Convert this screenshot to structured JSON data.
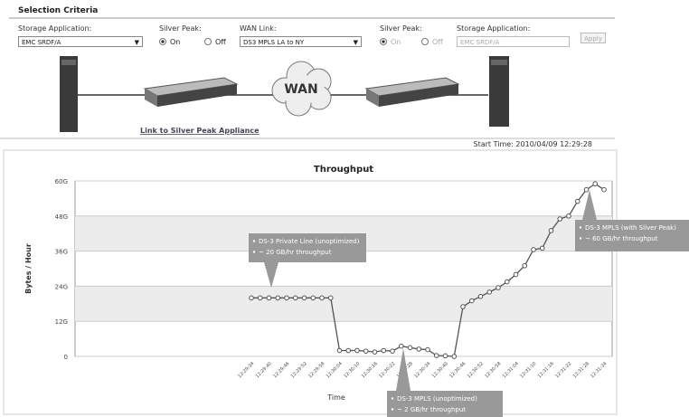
{
  "header": {
    "title": "Selection Criteria"
  },
  "form": {
    "left": {
      "app_label": "Storage Application:",
      "app": "EMC SRDF/A",
      "sp_label": "Silver Peak:",
      "on": "On",
      "off": "Off"
    },
    "wan_label": "WAN Link:",
    "wan": "DS3 MPLS LA to NY",
    "right": {
      "sp_label": "Silver Peak:",
      "on": "On",
      "off": "Off",
      "app_label": "Storage Application:",
      "app": "EMC SRDF/A"
    },
    "apply": "Apply"
  },
  "diagram": {
    "wan": "WAN",
    "link": "Link to Silver Peak Appliance"
  },
  "start_time": "Start Time: 2010/04/09 12:29:28",
  "chart_data": {
    "type": "line",
    "title": "Throughput",
    "y_label": "Bytes / Hour",
    "x_label": "Time",
    "categories": [
      "12:29:34",
      null,
      "12:29:40",
      null,
      "12:29:46",
      null,
      "12:29:52",
      null,
      "12:29:58",
      null,
      "12:30:04",
      null,
      "12:30:10",
      null,
      "12:30:16",
      null,
      "12:30:22",
      null,
      "12:30:28",
      null,
      "12:30:34",
      null,
      "12:30:40",
      null,
      "12:30:46",
      null,
      "12:30:52",
      null,
      "12:30:58",
      null,
      "12:31:04",
      null,
      "12:31:10",
      null,
      "12:31:16",
      null,
      "12:31:22",
      null,
      "12:31:28",
      null,
      "12:31:34"
    ],
    "values": [
      20,
      20,
      20,
      20,
      20,
      20,
      20,
      20,
      20,
      20,
      2,
      2,
      2,
      1.8,
      1.5,
      2,
      1.8,
      3.5,
      3,
      2.5,
      2.3,
      0.3,
      0.2,
      0,
      17,
      19,
      20.5,
      22,
      23.5,
      25.5,
      28,
      31,
      36.5,
      37,
      43,
      47,
      48,
      53,
      57,
      59,
      57
    ],
    "color": "#555555",
    "ylim": [
      0,
      60
    ],
    "yticks": [
      0,
      {
        "value": 12,
        "label": "12G"
      },
      {
        "value": 24,
        "label": "24G"
      },
      {
        "value": 36,
        "label": "36G"
      },
      {
        "value": 48,
        "label": "48G"
      },
      {
        "value": 60,
        "label": "60G"
      }
    ],
    "grid": true,
    "annotations": [
      {
        "lines": [
          "DS-3 Private Line (unoptimized)",
          "~ 20 GB/hr throughput"
        ]
      },
      {
        "lines": [
          "DS-3 MPLS (unoptimized)",
          "~ 2 GB/hr throughput"
        ]
      },
      {
        "lines": [
          "DS-3 MPLS (with Silver Peak)",
          "~ 60 GB/hr throughput"
        ]
      }
    ]
  }
}
